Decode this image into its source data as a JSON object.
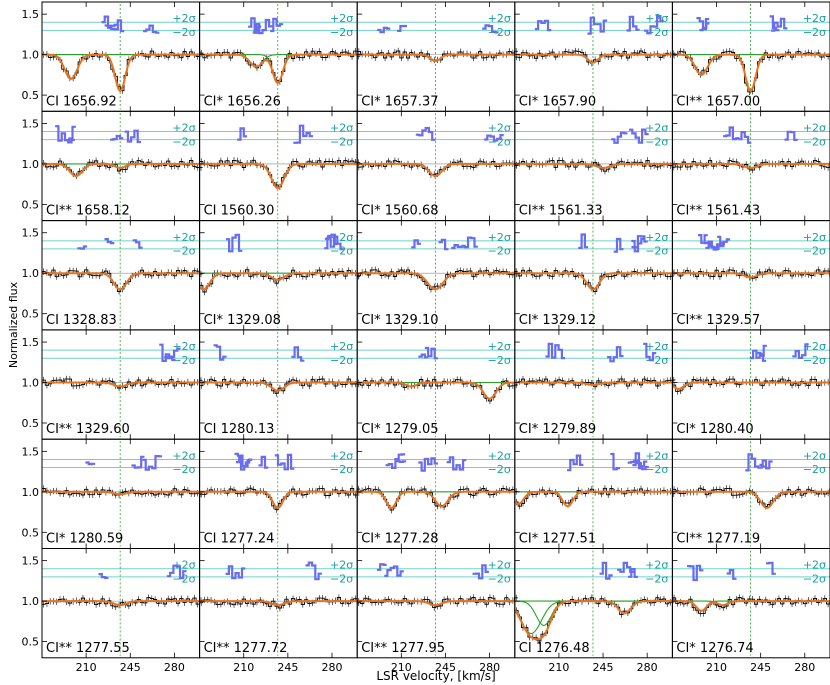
{
  "chart_data": {
    "type": "line",
    "xlabel": "LSR velocity, [km/s]",
    "ylabel": "Normalized flux",
    "xlim": [
      175,
      300
    ],
    "ylim": [
      0.3,
      1.65
    ],
    "x_ticks": [
      "210",
      "245",
      "280"
    ],
    "y_ticks": [
      "0.5",
      "1.0",
      "1.5"
    ],
    "component_velocity": 237,
    "residual_labels": [
      "+2σ",
      "−2σ"
    ],
    "colors": {
      "data": "#000000",
      "model": "#e8731f",
      "component": "#2aa02a",
      "residual": "#6a6cf0",
      "sigma": "#6fd3c8",
      "marker": "#2aa02a",
      "label": "#1aa0a0",
      "extra": "#8a8a9a"
    },
    "panels": [
      {
        "label": "CI 1656.92",
        "absorptions": [
          {
            "v": 198,
            "depth": 0.3,
            "w": 5
          },
          {
            "v": 237,
            "depth": 0.45,
            "w": 4
          }
        ]
      },
      {
        "label": "CI* 1656.26",
        "absorptions": [
          {
            "v": 220,
            "depth": 0.15,
            "w": 5
          },
          {
            "v": 237,
            "depth": 0.35,
            "w": 4
          }
        ]
      },
      {
        "label": "CI* 1657.37",
        "absorptions": [
          {
            "v": 237,
            "depth": 0.08,
            "w": 4
          }
        ]
      },
      {
        "label": "CI* 1657.90",
        "absorptions": [
          {
            "v": 237,
            "depth": 0.1,
            "w": 4
          }
        ]
      },
      {
        "label": "CI** 1657.00",
        "absorptions": [
          {
            "v": 198,
            "depth": 0.25,
            "w": 5
          },
          {
            "v": 237,
            "depth": 0.45,
            "w": 4
          }
        ]
      },
      {
        "label": "CI** 1658.12",
        "absorptions": [
          {
            "v": 202,
            "depth": 0.15,
            "w": 5
          },
          {
            "v": 237,
            "depth": 0.05,
            "w": 4
          }
        ]
      },
      {
        "label": "CI 1560.30",
        "absorptions": [
          {
            "v": 237,
            "depth": 0.3,
            "w": 5
          }
        ]
      },
      {
        "label": "CI* 1560.68",
        "absorptions": [
          {
            "v": 237,
            "depth": 0.15,
            "w": 5
          }
        ]
      },
      {
        "label": "CI** 1561.33",
        "absorptions": [
          {
            "v": 245,
            "depth": 0.05,
            "w": 5
          }
        ]
      },
      {
        "label": "CI** 1561.43",
        "absorptions": [
          {
            "v": 237,
            "depth": 0.05,
            "w": 5
          }
        ]
      },
      {
        "label": "CI 1328.83",
        "absorptions": [
          {
            "v": 237,
            "depth": 0.2,
            "w": 5
          }
        ]
      },
      {
        "label": "CI* 1329.08",
        "absorptions": [
          {
            "v": 178,
            "depth": 0.2,
            "w": 5
          },
          {
            "v": 237,
            "depth": 0.08,
            "w": 5
          }
        ]
      },
      {
        "label": "CI* 1329.10",
        "absorptions": [
          {
            "v": 237,
            "depth": 0.2,
            "w": 6
          }
        ]
      },
      {
        "label": "CI* 1329.12",
        "absorptions": [
          {
            "v": 237,
            "depth": 0.2,
            "w": 5
          }
        ]
      },
      {
        "label": "CI** 1329.57",
        "absorptions": [
          {
            "v": 237,
            "depth": 0.05,
            "w": 5
          }
        ]
      },
      {
        "label": "CI** 1329.60",
        "absorptions": [
          {
            "v": 237,
            "depth": 0.05,
            "w": 5
          }
        ]
      },
      {
        "label": "CI 1280.13",
        "absorptions": [
          {
            "v": 237,
            "depth": 0.1,
            "w": 5
          }
        ]
      },
      {
        "label": "CI* 1279.05",
        "absorptions": [
          {
            "v": 218,
            "depth": 0.05,
            "w": 4
          },
          {
            "v": 280,
            "depth": 0.2,
            "w": 5
          }
        ]
      },
      {
        "label": "CI* 1279.89",
        "absorptions": [
          {
            "v": 237,
            "depth": 0.03,
            "w": 5
          }
        ]
      },
      {
        "label": "CI* 1280.40",
        "absorptions": [
          {
            "v": 180,
            "depth": 0.08,
            "w": 4
          }
        ]
      },
      {
        "label": "CI* 1280.59",
        "absorptions": [
          {
            "v": 237,
            "depth": 0.03,
            "w": 5
          }
        ]
      },
      {
        "label": "CI 1277.24",
        "absorptions": [
          {
            "v": 237,
            "depth": 0.2,
            "w": 4
          }
        ]
      },
      {
        "label": "CI* 1277.28",
        "absorptions": [
          {
            "v": 202,
            "depth": 0.2,
            "w": 4
          },
          {
            "v": 242,
            "depth": 0.18,
            "w": 5
          }
        ]
      },
      {
        "label": "CI* 1277.51",
        "absorptions": [
          {
            "v": 178,
            "depth": 0.15,
            "w": 4
          },
          {
            "v": 217,
            "depth": 0.18,
            "w": 4
          }
        ]
      },
      {
        "label": "CI** 1277.19",
        "absorptions": [
          {
            "v": 250,
            "depth": 0.2,
            "w": 5
          }
        ]
      },
      {
        "label": "CI** 1277.55",
        "absorptions": [
          {
            "v": 237,
            "depth": 0.05,
            "w": 5
          }
        ]
      },
      {
        "label": "CI** 1277.72",
        "absorptions": [
          {
            "v": 237,
            "depth": 0.05,
            "w": 5
          }
        ]
      },
      {
        "label": "CI** 1277.95",
        "absorptions": [
          {
            "v": 237,
            "depth": 0.05,
            "w": 5
          }
        ]
      },
      {
        "label": "CI 1276.48",
        "absorptions": [
          {
            "v": 188,
            "depth": 0.4,
            "w": 8
          },
          {
            "v": 198,
            "depth": 0.3,
            "w": 6
          },
          {
            "v": 262,
            "depth": 0.15,
            "w": 5
          }
        ]
      },
      {
        "label": "CI* 1276.74",
        "absorptions": [
          {
            "v": 198,
            "depth": 0.12,
            "w": 4
          },
          {
            "v": 215,
            "depth": 0.05,
            "w": 4
          }
        ]
      }
    ]
  }
}
